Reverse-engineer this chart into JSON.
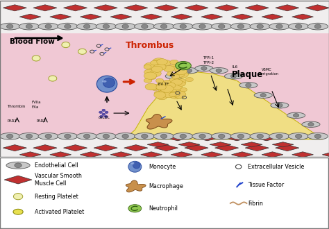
{
  "bg_color": "#f0f0f0",
  "lumen_color": "#f0c8d4",
  "vessel_wall_color": "#e8e0e0",
  "endothelial_color": "#c8c8c8",
  "endothelial_ec": "#555555",
  "smooth_muscle_color": "#c03030",
  "smooth_muscle_ec": "#333333",
  "plaque_color": "#f0e080",
  "plaque_ec": "#c0b000",
  "thrombus_fill": "#e8c860",
  "thrombus_ec": "#b09010",
  "monocyte_fill": "#7090cc",
  "monocyte_ec": "#3050a0",
  "monocyte_nucleus": "#4060b0",
  "macrophage_fill": "#c8904c",
  "macrophage_ec": "#7a4818",
  "neutrophil_fill": "#90c850",
  "neutrophil_ec": "#3a6618",
  "platelet_rest_fill": "#f0f0b0",
  "platelet_rest_ec": "#a0a030",
  "platelet_act_fill": "#e8e050",
  "platelet_act_ec": "#808000",
  "ev_ec": "#444444",
  "tf_color": "#2244cc",
  "fibrin_color": "#c09060",
  "oxldl_fill": "#6050a0",
  "oxldl_ec": "#3030a0",
  "red_arrow_color": "#cc2200",
  "text_dark": "#111111",
  "title_red": "#cc2200",
  "legend_bg": "#ffffff",
  "border_color": "#777777",
  "main_title": "Thrombus",
  "plaque_label": "Plaque",
  "blood_flow_label": "Blood Flow"
}
